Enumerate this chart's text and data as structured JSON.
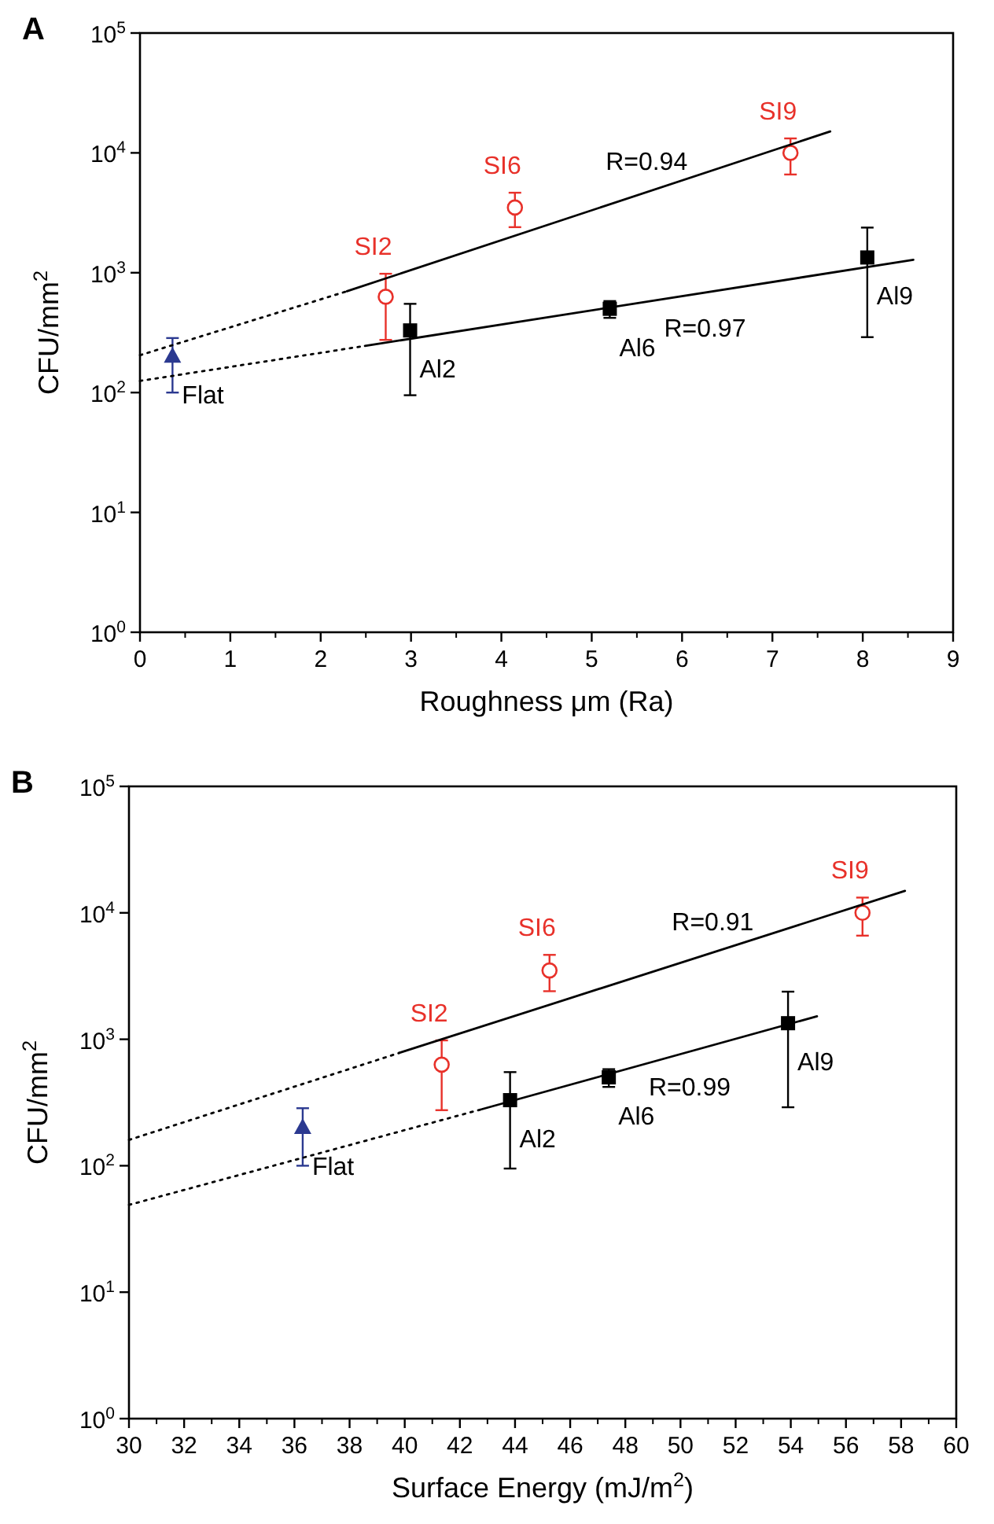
{
  "chart_data": [
    {
      "type": "scatter",
      "title": "A",
      "xlabel": "Roughness μm (Ra)",
      "ylabel": "CFU/mm$^{2}$",
      "log": "y",
      "legend": false,
      "xlim": [
        0,
        9
      ],
      "xticks": [
        0,
        1,
        2,
        3,
        4,
        5,
        6,
        7,
        8,
        9
      ],
      "ylim": [
        1,
        100000
      ],
      "yticks": [
        {
          "value": 1,
          "label": "10$^{0}$"
        },
        {
          "value": 10,
          "label": "10$^{1}$"
        },
        {
          "value": 100,
          "label": "10$^{2}$"
        },
        {
          "value": 1000,
          "label": "10$^{3}$"
        },
        {
          "value": 10000,
          "label": "10$^{4}$"
        },
        {
          "value": 100000,
          "label": "10$^{5}$"
        }
      ],
      "series": [
        {
          "color": "#2b3990",
          "marker": "triangle",
          "x": [
            0.36
          ],
          "values": [
            200
          ],
          "errors": [
            [
              100,
              285
            ]
          ],
          "value_labels": [
            "Flat"
          ]
        },
        {
          "color": "#e8312a",
          "marker": "circle",
          "x": [
            2.72,
            4.15,
            7.2
          ],
          "values": [
            630,
            3500,
            10000
          ],
          "errors": [
            [
              275,
              980
            ],
            [
              2400,
              4650
            ],
            [
              6600,
              13200
            ]
          ],
          "value_labels": [
            "SI2",
            "SI6",
            "SI9"
          ]
        },
        {
          "color": "#000000",
          "marker": "square",
          "x": [
            2.99,
            5.2,
            8.05
          ],
          "values": [
            330,
            500,
            1340
          ],
          "errors": [
            [
              95,
              550
            ],
            [
              420,
              580
            ],
            [
              290,
              2380
            ]
          ],
          "value_labels": [
            "Al2",
            "Al6",
            "Al9"
          ]
        },
        {
          "type": "line",
          "name": "R=0.94",
          "color": "#000000",
          "marker": "none",
          "line_style": "solid",
          "x": [
            2.29,
            7.64
          ],
          "values": [
            700,
            15100
          ]
        },
        {
          "type": "line",
          "color": "#000000",
          "marker": "none",
          "line_style": "dotted",
          "x": [
            0,
            2.29
          ],
          "values": [
            205,
            700
          ]
        },
        {
          "type": "line",
          "name": "R=0.97",
          "color": "#000000",
          "marker": "none",
          "line_style": "solid",
          "x": [
            2.49,
            8.56
          ],
          "values": [
            245,
            1280
          ]
        },
        {
          "type": "line",
          "color": "#000000",
          "marker": "none",
          "line_style": "dotted",
          "x": [
            0,
            2.49
          ],
          "values": [
            125,
            245
          ]
        }
      ]
    },
    {
      "type": "scatter",
      "title": "B",
      "xlabel": "Surface Energy (mJ/m$^{2}$)",
      "ylabel": "CFU/mm$^{2}$",
      "log": "y",
      "legend": false,
      "xlim": [
        30,
        60
      ],
      "xticks": [
        30,
        32,
        34,
        36,
        38,
        40,
        42,
        44,
        46,
        48,
        50,
        52,
        54,
        56,
        58,
        60
      ],
      "ylim": [
        1,
        100000
      ],
      "yticks": [
        {
          "value": 1,
          "label": "10$^{0}$"
        },
        {
          "value": 10,
          "label": "10$^{1}$"
        },
        {
          "value": 100,
          "label": "10$^{2}$"
        },
        {
          "value": 1000,
          "label": "10$^{3}$"
        },
        {
          "value": 10000,
          "label": "10$^{4}$"
        },
        {
          "value": 100000,
          "label": "10$^{5}$"
        }
      ],
      "series": [
        {
          "color": "#2b3990",
          "marker": "triangle",
          "x": [
            36.3
          ],
          "values": [
            200
          ],
          "errors": [
            [
              100,
              285
            ]
          ],
          "value_labels": [
            "Flat"
          ]
        },
        {
          "color": "#e8312a",
          "marker": "circle",
          "x": [
            41.34,
            45.25,
            56.6
          ],
          "values": [
            630,
            3500,
            10000
          ],
          "errors": [
            [
              275,
              980
            ],
            [
              2400,
              4650
            ],
            [
              6600,
              13200
            ]
          ],
          "value_labels": [
            "SI2",
            "SI6",
            "SI9"
          ]
        },
        {
          "color": "#000000",
          "marker": "square",
          "x": [
            43.82,
            47.4,
            53.9
          ],
          "values": [
            330,
            500,
            1340
          ],
          "errors": [
            [
              95,
              550
            ],
            [
              420,
              580
            ],
            [
              290,
              2380
            ]
          ],
          "value_labels": [
            "Al2",
            "Al6",
            "Al9"
          ]
        },
        {
          "type": "line",
          "name": "R=0.91",
          "color": "#000000",
          "marker": "none",
          "line_style": "solid",
          "x": [
            39.8,
            58.14
          ],
          "values": [
            780,
            14900
          ]
        },
        {
          "type": "line",
          "color": "#000000",
          "marker": "none",
          "line_style": "dotted",
          "x": [
            30,
            39.8
          ],
          "values": [
            160,
            780
          ]
        },
        {
          "type": "line",
          "name": "R=0.99",
          "color": "#000000",
          "marker": "none",
          "line_style": "solid",
          "x": [
            42.8,
            54.95
          ],
          "values": [
            280,
            1520
          ]
        },
        {
          "type": "line",
          "color": "#000000",
          "marker": "none",
          "line_style": "dotted",
          "x": [
            30,
            42.8
          ],
          "values": [
            49,
            280
          ]
        }
      ]
    }
  ]
}
